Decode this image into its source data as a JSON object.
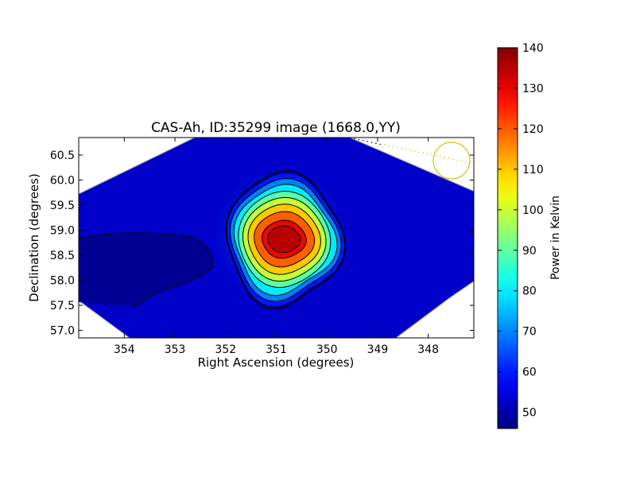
{
  "chart_data": {
    "type": "heatmap",
    "title": "CAS-Ah, ID:35299 image (1668.0,YY)",
    "xlabel": "Right Ascension (degrees)",
    "ylabel": "Declination (degrees)",
    "xlim": [
      354.9,
      347.1
    ],
    "ylim": [
      56.85,
      60.85
    ],
    "x_inverted": true,
    "x_ticks": [
      354,
      353,
      352,
      351,
      350,
      349,
      348
    ],
    "x_tick_labels": [
      "354",
      "353",
      "352",
      "351",
      "350",
      "349",
      "348"
    ],
    "y_ticks": [
      57.0,
      57.5,
      58.0,
      58.5,
      59.0,
      59.5,
      60.0,
      60.5
    ],
    "y_tick_labels": [
      "57.0",
      "57.5",
      "58.0",
      "58.5",
      "59.0",
      "59.5",
      "60.0",
      "60.5"
    ],
    "source": {
      "ra": 350.85,
      "dec": 58.82,
      "peak_kelvin": 140
    },
    "background_kelvin": 58,
    "colormap": "jet",
    "colorbar": {
      "label": "Power in Kelvin",
      "min": 46,
      "max": 140,
      "ticks": [
        50,
        60,
        70,
        80,
        90,
        100,
        110,
        120,
        130,
        140
      ],
      "tick_labels": [
        "50",
        "60",
        "70",
        "80",
        "90",
        "100",
        "110",
        "120",
        "130",
        "140"
      ]
    },
    "contour_levels_kelvin": [
      50,
      60,
      70,
      80,
      90,
      100,
      110,
      120,
      130,
      135
    ],
    "beam_marker": {
      "ra": 347.5,
      "dec": 60.38,
      "color": "#c8c800"
    },
    "grid": false,
    "legend": "none"
  }
}
